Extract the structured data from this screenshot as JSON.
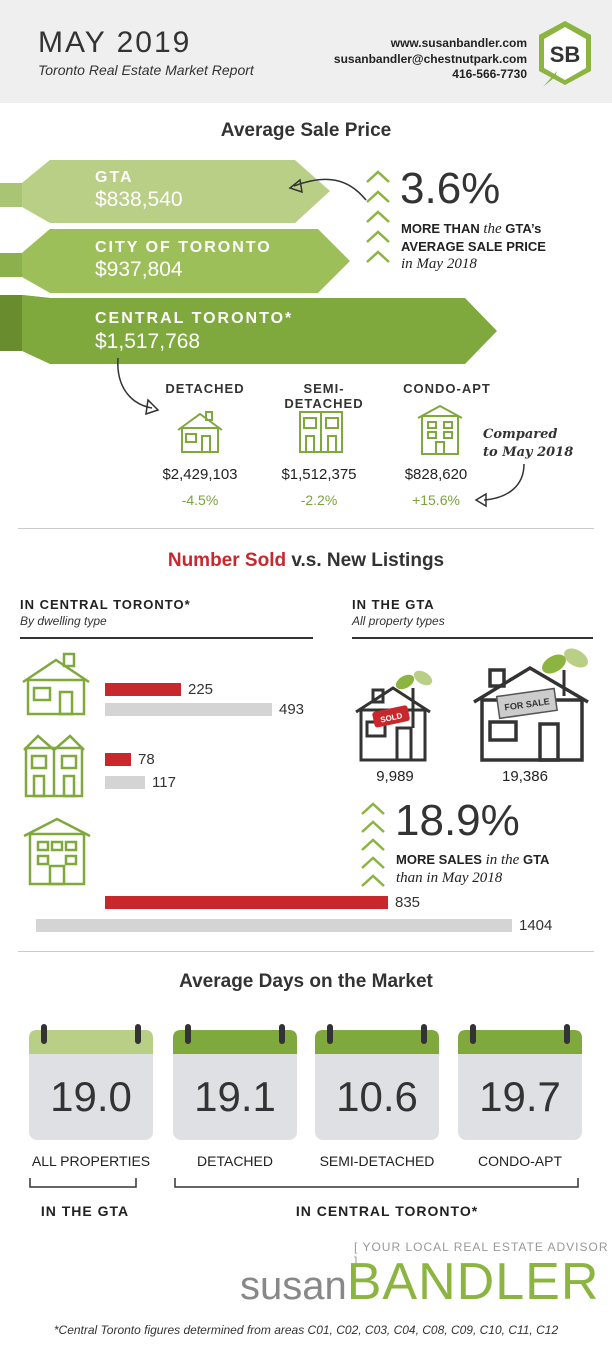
{
  "header": {
    "title": "MAY 2019",
    "subtitle": "Toronto Real Estate Market Report",
    "website": "www.susanbandler.com",
    "email": "susanbandler@chestnutpark.com",
    "phone": "416-566-7730",
    "logo_text": "SB"
  },
  "avg_price": {
    "title": "Average Sale Price",
    "banners": [
      {
        "label": "GTA",
        "value": "$838,540",
        "color": "#b9cf86"
      },
      {
        "label": "CITY OF TORONTO",
        "value": "$937,804",
        "color": "#9cbf5a"
      },
      {
        "label": "CENTRAL TORONTO*",
        "value": "$1,517,768",
        "color": "#7fa83d"
      }
    ],
    "pct": "3.6%",
    "caption_line1_a": "MORE THAN",
    "caption_line1_b": "the",
    "caption_line1_c": "GTA’s",
    "caption_line2": "AVERAGE SALE PRICE",
    "caption_line3": "in May 2018",
    "compared_note_1": "Compared",
    "compared_note_2": "to May 2018",
    "dwellings": [
      {
        "label": "DETACHED",
        "price": "$2,429,103",
        "change": "-4.5%"
      },
      {
        "label": "SEMI-DETACHED",
        "price": "$1,512,375",
        "change": "-2.2%"
      },
      {
        "label": "CONDO-APT",
        "price": "$828,620",
        "change": "+15.6%"
      }
    ]
  },
  "sold_vs_listings": {
    "title_red": "Number Sold",
    "title_rest": "v.s. New Listings",
    "left_heading": "IN CENTRAL TORONTO*",
    "left_sub": "By dwelling type",
    "right_heading": "IN THE GTA",
    "right_sub": "All property types",
    "sold_color": "#c8282c",
    "listing_color": "#d4d4d4",
    "rows": [
      {
        "type": "detached",
        "sold": 225,
        "listings": 493
      },
      {
        "type": "semi-detached",
        "sold": 78,
        "listings": 117
      },
      {
        "type": "condo-apt",
        "sold": 835,
        "listings": 1404
      }
    ],
    "gta_sold": "9,989",
    "gta_listings": "19,386",
    "sold_sign": "SOLD",
    "for_sale_sign": "FOR SALE",
    "pct": "18.9%",
    "caption_a": "MORE SALES",
    "caption_b": "in the",
    "caption_c": "GTA",
    "caption_line2": "than in May 2018"
  },
  "days_on_market": {
    "title": "Average Days on the Market",
    "calendars": [
      {
        "value": "19.0",
        "label": "ALL PROPERTIES",
        "top_color": "#b9cf86"
      },
      {
        "value": "19.1",
        "label": "DETACHED",
        "top_color": "#7fa83d"
      },
      {
        "value": "10.6",
        "label": "SEMI-DETACHED",
        "top_color": "#7fa83d"
      },
      {
        "value": "19.7",
        "label": "CONDO-APT",
        "top_color": "#7fa83d"
      }
    ],
    "bracket_gta": "IN THE GTA",
    "bracket_central": "IN CENTRAL TORONTO*"
  },
  "footer": {
    "advisor": "[ YOUR LOCAL REAL ESTATE ADVISOR ]",
    "brand_1": "susan",
    "brand_2": "BANDLER",
    "footnote": "*Central Toronto figures determined from areas C01, C02, C03, C04, C08, C09, C10, C11, C12"
  }
}
